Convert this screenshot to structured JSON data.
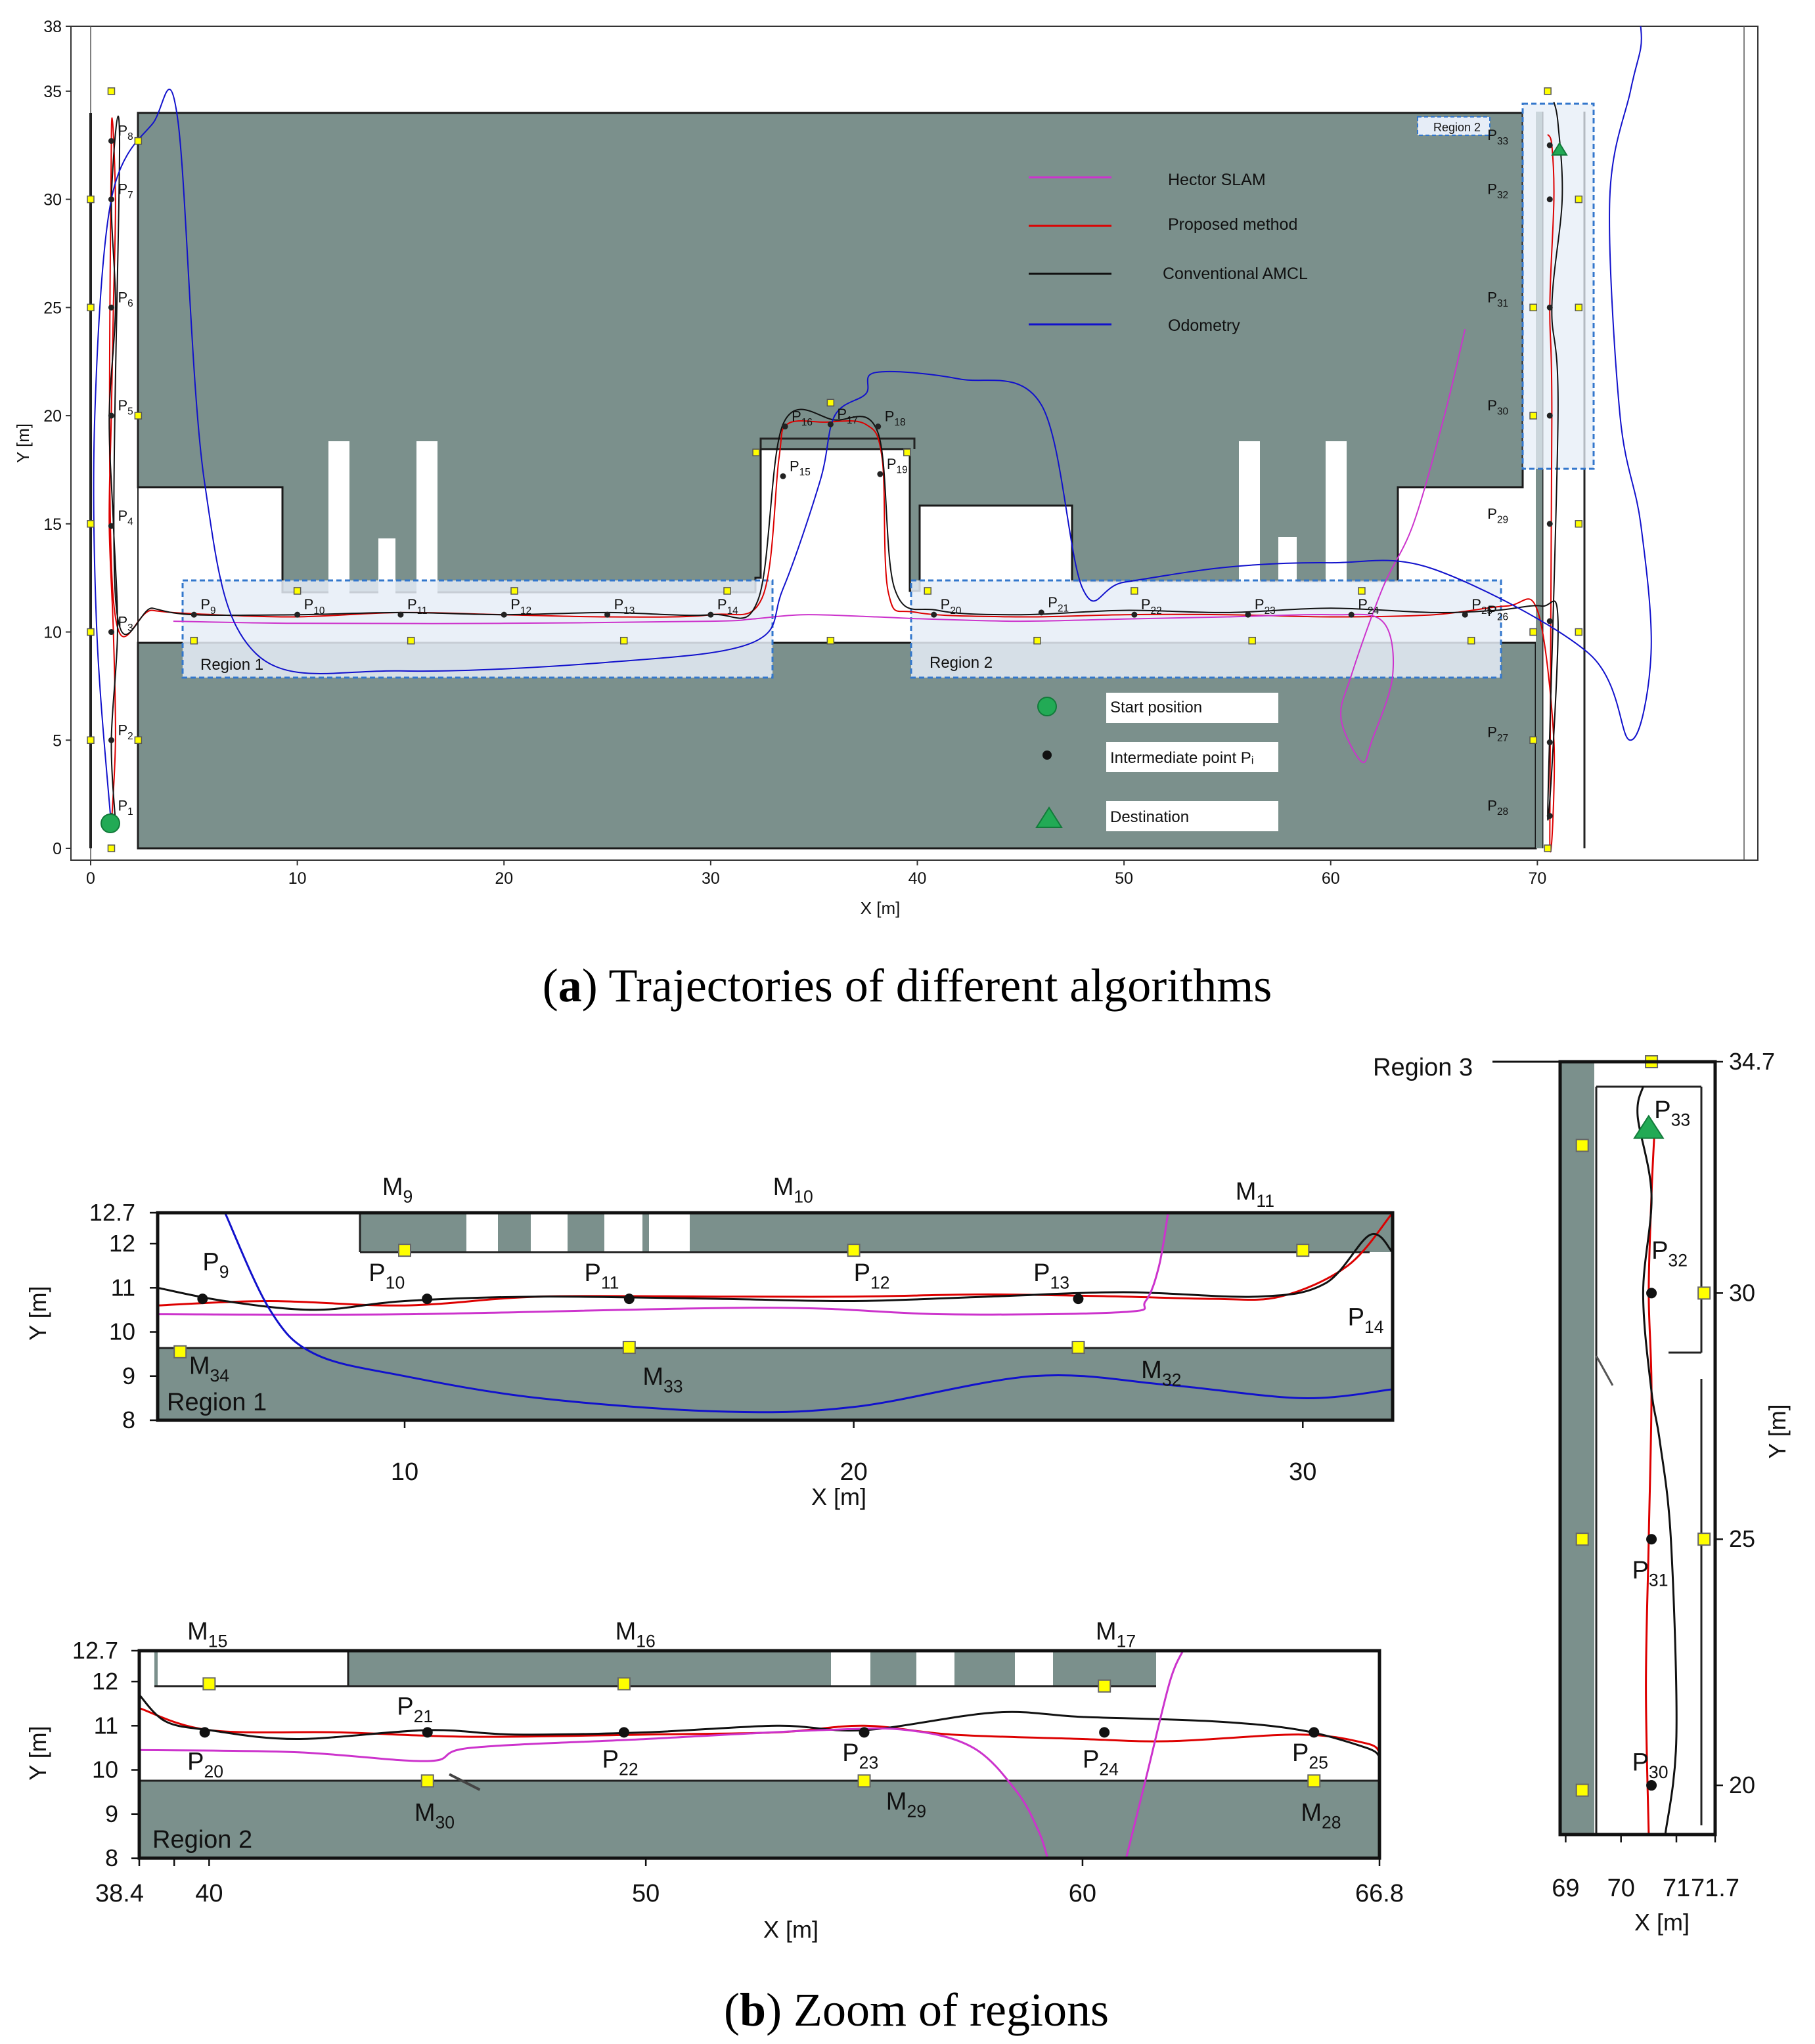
{
  "colors": {
    "hector": "#cc33cc",
    "proposed": "#dd0000",
    "amcl": "#111111",
    "odometry": "#1111cc",
    "wall": "#7b908c",
    "region_fill": "#e8eef7",
    "region_border": "#3377cc",
    "marker": "#ffff00",
    "start": "#22aa55"
  },
  "panel_a": {
    "caption_letter": "a",
    "caption_text": "Trajectories of different algorithms",
    "xlabel": "X [m]",
    "ylabel": "Y [m]",
    "xticks": [
      "0",
      "10",
      "20",
      "30",
      "40",
      "50",
      "60",
      "70"
    ],
    "yticks": [
      "0",
      "5",
      "10",
      "15",
      "20",
      "25",
      "30",
      "35",
      "38"
    ],
    "legend_lines": [
      "Hector SLAM",
      "Proposed method",
      "Conventional AMCL",
      "Odometry"
    ],
    "legend_markers": [
      "Start position",
      "Intermediate point Pᵢ",
      "Destination"
    ],
    "region_labels": [
      "Region 1",
      "Region 2",
      "Region 2"
    ]
  },
  "panel_b": {
    "caption_letter": "b",
    "caption_text": "Zoom of regions",
    "region1": {
      "label": "Region 1",
      "xlabel": "X [m]",
      "ylabel": "Y [m]",
      "xticks": [
        "10",
        "20",
        "30"
      ],
      "yticks": [
        "12.7",
        "12",
        "11",
        "10",
        "9",
        "8"
      ],
      "points": [
        "P9",
        "P10",
        "P11",
        "P12",
        "P13",
        "P14"
      ],
      "markers": [
        "M9",
        "M10",
        "M11",
        "M34",
        "M33",
        "M32"
      ]
    },
    "region2": {
      "label": "Region 2",
      "xlabel": "X [m]",
      "ylabel": "Y [m]",
      "xticks": [
        "38.4",
        "40",
        "50",
        "60",
        "66.8"
      ],
      "yticks": [
        "12.7",
        "12",
        "11",
        "10",
        "9",
        "8"
      ],
      "points": [
        "P20",
        "P21",
        "P22",
        "P23",
        "P24",
        "P25"
      ],
      "markers": [
        "M15",
        "M16",
        "M17",
        "M30",
        "M29",
        "M28"
      ]
    },
    "region3": {
      "label": "Region 3",
      "xlabel": "X [m]",
      "ylabel": "Y [m]",
      "xticks": [
        "69",
        "70",
        "71",
        "71.7"
      ],
      "yticks": [
        "34.7",
        "30",
        "25",
        "20"
      ],
      "points": [
        "P33",
        "P32",
        "P31",
        "P30"
      ]
    }
  },
  "chart_data": [
    {
      "type": "line",
      "title": "Trajectories of different algorithms",
      "xlabel": "X [m]",
      "ylabel": "Y [m]",
      "xlim": [
        0,
        80
      ],
      "ylim": [
        0,
        38
      ],
      "series": [
        {
          "name": "Proposed method",
          "x": [
            1.0,
            1.2,
            1.1,
            0.9,
            1.0,
            1.1,
            1.2,
            1.0,
            1.1,
            3,
            6,
            10,
            15,
            20,
            25,
            30,
            32.5,
            33.3,
            33.7,
            35.5,
            37.5,
            38.3,
            38.6,
            40,
            45,
            50,
            55,
            60,
            65,
            68.5,
            70,
            70.8,
            70.6,
            70.7,
            70.6,
            70.8,
            70.7,
            70.5
          ],
          "y": [
            1.0,
            5,
            10,
            15,
            20,
            25,
            30,
            32.7,
            11.5,
            11.0,
            10.8,
            10.7,
            10.9,
            10.8,
            10.7,
            10.8,
            11.6,
            18,
            19.6,
            19.7,
            19.6,
            18,
            11.8,
            10.9,
            10.7,
            10.8,
            10.8,
            10.7,
            10.8,
            11.2,
            11.0,
            5,
            0.5,
            20,
            25,
            30,
            32.5,
            33.0
          ]
        },
        {
          "name": "Conventional AMCL",
          "x": [
            1.2,
            1.0,
            1.3,
            1.1,
            0.9,
            1.2,
            1.0,
            1.4,
            1.2,
            3,
            5,
            10,
            15,
            20,
            25,
            30,
            32.3,
            33.5,
            36,
            38.1,
            38.9,
            41,
            45,
            50,
            55,
            60,
            65,
            68,
            70.2,
            71.0,
            70.5,
            71.0,
            70.7,
            71.2,
            71.0,
            70.8
          ],
          "y": [
            1.2,
            5,
            10,
            15,
            20,
            25,
            30,
            32.8,
            11.6,
            11.1,
            10.8,
            10.8,
            10.9,
            10.8,
            10.9,
            10.8,
            11.5,
            19.6,
            19.8,
            19.2,
            12,
            11.0,
            10.8,
            11.0,
            10.9,
            11.1,
            10.9,
            11.0,
            11.2,
            10.5,
            1.5,
            20,
            25,
            30,
            33.5,
            34.5
          ]
        },
        {
          "name": "Hector SLAM",
          "x": [
            4,
            10,
            20,
            30,
            32,
            34.5,
            38,
            40.5,
            45,
            50,
            55,
            60,
            62.5,
            63,
            62,
            61.5,
            60.5,
            61,
            62.5,
            64,
            65.5,
            66.5
          ],
          "y": [
            10.5,
            10.4,
            10.4,
            10.5,
            10.6,
            10.8,
            10.7,
            10.6,
            10.5,
            10.6,
            10.7,
            10.8,
            10.5,
            8,
            5,
            4,
            6,
            8,
            12,
            15,
            20,
            24
          ]
        },
        {
          "name": "Odometry",
          "x": [
            1.0,
            0.3,
            0.2,
            1,
            3,
            4.2,
            5.5,
            8,
            15,
            25,
            32,
            33.5,
            35.3,
            36,
            37.5,
            38,
            42,
            46,
            48,
            50,
            55,
            60,
            65,
            72.5,
            74.5,
            75.5,
            75.0,
            74.0,
            73.5,
            74.5,
            75.0,
            75.0
          ],
          "y": [
            1.0,
            10,
            20,
            30,
            33.5,
            33.8,
            17,
            9,
            8.2,
            8.6,
            9.5,
            12,
            17,
            20,
            21,
            22,
            21.7,
            20.5,
            12,
            12.3,
            13.0,
            13.2,
            12.9,
            9,
            5,
            9,
            15,
            20,
            30,
            35,
            37,
            38
          ]
        }
      ]
    },
    {
      "type": "line",
      "title": "Region 1",
      "xlabel": "X [m]",
      "ylabel": "Y [m]",
      "xlim": [
        4.5,
        32
      ],
      "ylim": [
        8,
        12.7
      ],
      "series": [
        {
          "name": "Proposed method",
          "x": [
            4.5,
            7,
            10,
            13,
            17,
            20,
            23,
            26,
            28,
            29.5,
            31,
            32
          ],
          "y": [
            10.6,
            10.7,
            10.6,
            10.8,
            10.8,
            10.8,
            10.85,
            10.8,
            10.75,
            10.8,
            11.5,
            12.7
          ]
        },
        {
          "name": "Conventional AMCL",
          "x": [
            4.5,
            6,
            8,
            10,
            13,
            17,
            20,
            23,
            26,
            29,
            30.5,
            31.5,
            32
          ],
          "y": [
            11.0,
            10.7,
            10.5,
            10.7,
            10.8,
            10.75,
            10.7,
            10.8,
            10.9,
            10.8,
            11.1,
            12.2,
            11.8
          ]
        },
        {
          "name": "Hector SLAM",
          "x": [
            4.5,
            10,
            18,
            22,
            26,
            26.5,
            26.8,
            27
          ],
          "y": [
            10.4,
            10.4,
            10.55,
            10.4,
            10.45,
            10.7,
            11.5,
            12.7
          ]
        },
        {
          "name": "Odometry",
          "x": [
            6,
            7,
            8,
            10,
            13,
            17,
            20,
            24,
            27,
            30,
            32
          ],
          "y": [
            12.7,
            10.5,
            9.5,
            9.0,
            8.5,
            8.2,
            8.3,
            9.0,
            8.8,
            8.5,
            8.7
          ]
        }
      ]
    },
    {
      "type": "line",
      "title": "Region 2",
      "xlabel": "X [m]",
      "ylabel": "Y [m]",
      "xlim": [
        38.4,
        66.8
      ],
      "ylim": [
        8,
        12.7
      ],
      "series": [
        {
          "name": "Proposed method",
          "x": [
            38.4,
            40,
            43,
            46,
            50,
            53,
            55,
            57,
            60,
            62,
            65,
            66.5,
            66.8
          ],
          "y": [
            11.4,
            10.9,
            10.85,
            10.75,
            10.8,
            10.85,
            11.0,
            10.8,
            10.7,
            10.65,
            10.8,
            10.6,
            10.4
          ]
        },
        {
          "name": "Conventional AMCL",
          "x": [
            38.4,
            39,
            40,
            42,
            45,
            47,
            50,
            53,
            55,
            58,
            60,
            63,
            65,
            66.5,
            66.8
          ],
          "y": [
            11.7,
            11.1,
            10.9,
            10.7,
            10.9,
            10.8,
            10.85,
            11.0,
            10.9,
            11.3,
            11.2,
            11.1,
            10.9,
            10.5,
            10.3
          ]
        },
        {
          "name": "Hector SLAM",
          "x": [
            38.4,
            42,
            45,
            46,
            50,
            54,
            56,
            57.5,
            58.5,
            59,
            59.2
          ],
          "y": [
            10.45,
            10.4,
            10.2,
            10.5,
            10.7,
            10.9,
            10.9,
            10.5,
            9.5,
            8.6,
            8.0
          ]
        },
        {
          "name": "Hector SLAM (return)",
          "x": [
            61.0,
            61.5,
            62.0,
            62.3
          ],
          "y": [
            8.0,
            10.0,
            12.0,
            12.7
          ]
        }
      ]
    },
    {
      "type": "line",
      "title": "Region 3",
      "xlabel": "X [m]",
      "ylabel": "Y [m]",
      "xlim": [
        68.9,
        71.7
      ],
      "ylim": [
        19.0,
        34.7
      ],
      "series": [
        {
          "name": "Proposed method",
          "x": [
            70.5,
            70.45,
            70.5,
            70.55,
            70.5,
            70.55,
            70.6
          ],
          "y": [
            19.0,
            22,
            25,
            28,
            30,
            32,
            33.2
          ]
        },
        {
          "name": "Conventional AMCL",
          "x": [
            70.8,
            71.0,
            70.9,
            70.7,
            70.55,
            70.4,
            70.55,
            70.3,
            70.4
          ],
          "y": [
            19.0,
            21,
            25,
            27,
            28,
            30,
            32,
            33.6,
            34.2
          ]
        }
      ]
    }
  ]
}
